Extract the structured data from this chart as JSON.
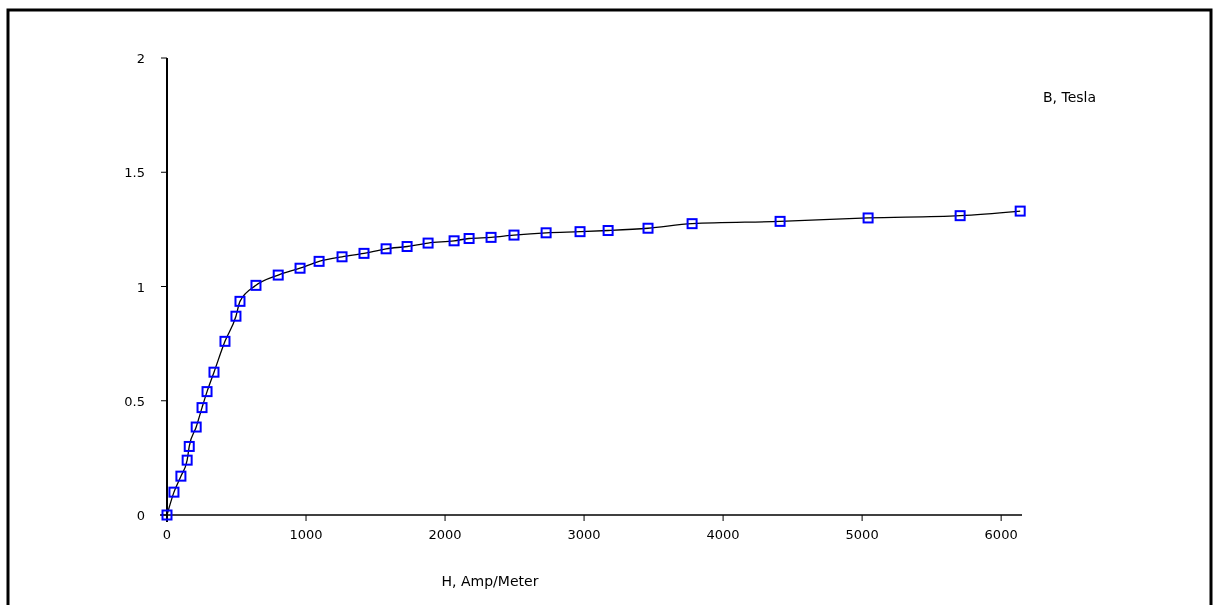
{
  "chart_data": {
    "type": "scatter",
    "xlabel": "H, Amp/Meter",
    "ylabel": "B, Tesla",
    "xlim": [
      0,
      6150
    ],
    "ylim": [
      0,
      2
    ],
    "xticks": [
      0,
      1000,
      2000,
      3000,
      4000,
      5000,
      6000
    ],
    "yticks": [
      0,
      0.5,
      1,
      1.5,
      2
    ],
    "grid": false,
    "x": [
      0,
      50,
      100,
      145,
      160,
      210,
      252,
      288,
      338,
      417,
      496,
      525,
      640,
      800,
      957,
      1094,
      1259,
      1417,
      1576,
      1727,
      1878,
      2065,
      2173,
      2331,
      2496,
      2727,
      2971,
      3173,
      3460,
      3777,
      4410,
      5043,
      5705,
      6137
    ],
    "series": [
      {
        "type": "line",
        "color": "#000000",
        "marker": "none",
        "line_style": "solid",
        "values": [
          0,
          0.1,
          0.17,
          0.24,
          0.3,
          0.385,
          0.47,
          0.54,
          0.625,
          0.76,
          0.87,
          0.935,
          1.005,
          1.05,
          1.08,
          1.11,
          1.13,
          1.145,
          1.165,
          1.175,
          1.19,
          1.2,
          1.21,
          1.215,
          1.225,
          1.235,
          1.24,
          1.245,
          1.255,
          1.275,
          1.285,
          1.3,
          1.31,
          1.33
        ]
      },
      {
        "color": "#0000ff",
        "marker": "square",
        "values": [
          0,
          0.1,
          0.17,
          0.24,
          0.3,
          0.385,
          0.47,
          0.54,
          0.625,
          0.76,
          0.87,
          0.935,
          1.005,
          1.05,
          1.08,
          1.11,
          1.13,
          1.145,
          1.165,
          1.175,
          1.19,
          1.2,
          1.21,
          1.215,
          1.225,
          1.235,
          1.24,
          1.245,
          1.255,
          1.275,
          1.285,
          1.3,
          1.31,
          1.33
        ]
      }
    ]
  }
}
